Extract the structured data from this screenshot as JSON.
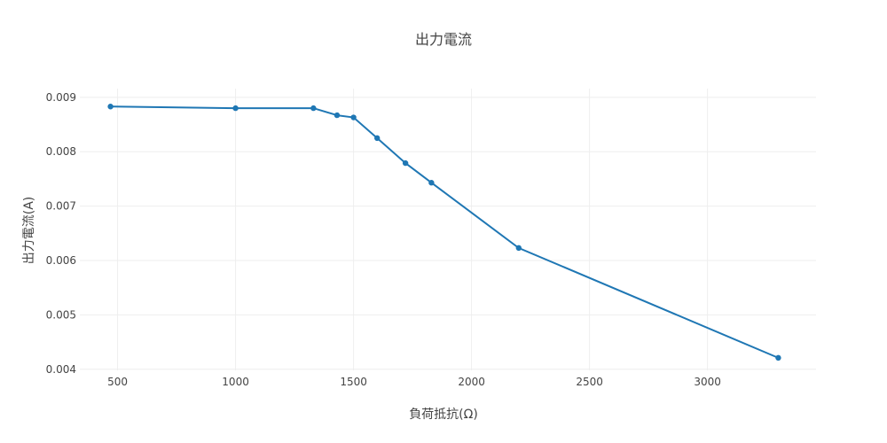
{
  "chart_data": {
    "type": "line",
    "title": "出力電流",
    "xlabel": "負荷抵抗(Ω)",
    "ylabel": "出力電流(A)",
    "xlim": [
      340,
      3460
    ],
    "ylim": [
      0.00398,
      0.00916
    ],
    "xticks": [
      500,
      1000,
      1500,
      2000,
      2500,
      3000
    ],
    "xtick_labels": [
      "500",
      "1000",
      "1500",
      "2000",
      "2500",
      "3000"
    ],
    "yticks": [
      0.004,
      0.005,
      0.006,
      0.007,
      0.008,
      0.009
    ],
    "ytick_labels": [
      "0.004",
      "0.005",
      "0.006",
      "0.007",
      "0.008",
      "0.009"
    ],
    "grid": true,
    "series": [
      {
        "color": "#1f77b4",
        "x": [
          470,
          1000,
          1330,
          1430,
          1500,
          1600,
          1720,
          1830,
          2200,
          3300
        ],
        "y": [
          0.00883,
          0.0088,
          0.0088,
          0.00867,
          0.00863,
          0.00825,
          0.00779,
          0.00743,
          0.00623,
          0.00421
        ]
      }
    ]
  }
}
